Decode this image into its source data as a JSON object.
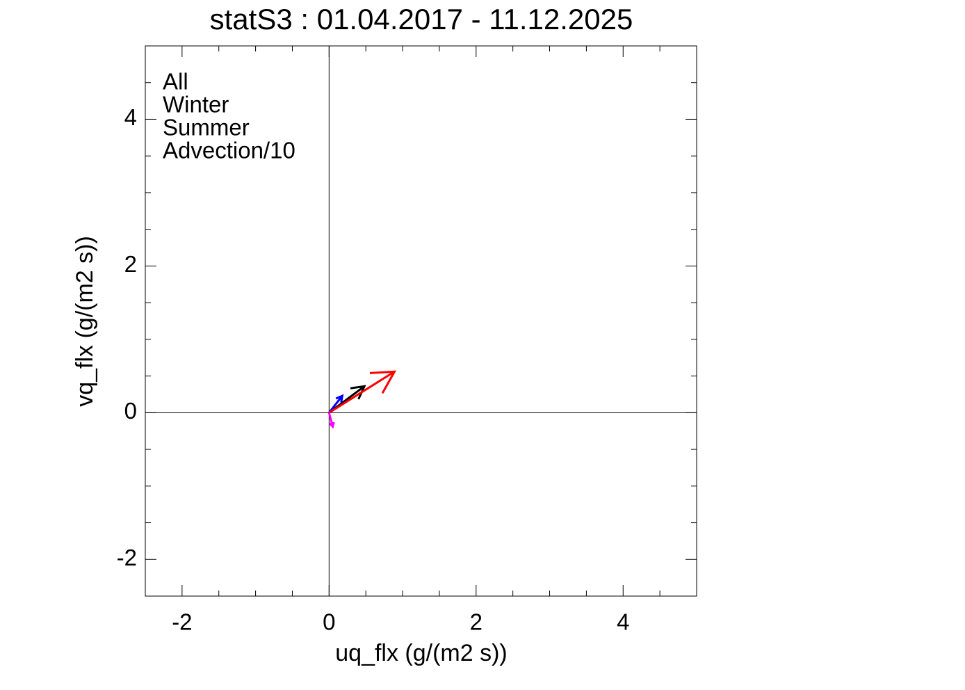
{
  "chart_data": {
    "type": "vector",
    "title": "statS3 : 01.04.2017 - 11.12.2025",
    "x_label": "uq_flx (g/(m2 s))",
    "y_label": "vq_flx (g/(m2 s))",
    "xlim": [
      -2.5,
      5
    ],
    "ylim": [
      -2.5,
      5
    ],
    "xticks": [
      -2,
      0,
      2,
      4
    ],
    "yticks": [
      -2,
      0,
      2,
      4
    ],
    "xminorticks": [
      -2.5,
      -1.5,
      -1,
      -0.5,
      0.5,
      1,
      1.5,
      2.5,
      3,
      3.5,
      4.5,
      5
    ],
    "yminorticks": [
      -2.5,
      -1.5,
      -1,
      -0.5,
      0.5,
      1,
      1.5,
      2.5,
      3,
      3.5,
      4.5,
      5
    ],
    "zero_lines": true,
    "legend": "upper left",
    "series": [
      {
        "name": "All",
        "color": "#000000",
        "u": 0.48,
        "v": 0.36
      },
      {
        "name": "Winter",
        "color": "#0000ff",
        "u": 0.18,
        "v": 0.23
      },
      {
        "name": "Summer",
        "color": "#ff0000",
        "u": 0.89,
        "v": 0.56
      },
      {
        "name": "Advection/10",
        "color": "#ff00ff",
        "u": 0.05,
        "v": -0.19
      }
    ]
  }
}
